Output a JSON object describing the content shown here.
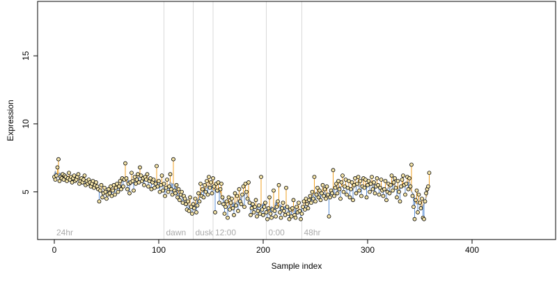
{
  "chart_data": {
    "type": "scatter",
    "xlabel": "Sample index",
    "ylabel": "Expression",
    "xlim": [
      -16,
      480
    ],
    "ylim": [
      1.5,
      19
    ],
    "x_ticks": [
      0,
      100,
      200,
      300,
      400
    ],
    "y_ticks": [
      5,
      10,
      15
    ],
    "grid": false,
    "legend": "none",
    "colors": {
      "above_fit_stem": "#f0a020",
      "below_fit_stem": "#5b8fd6",
      "fit_line": "#b0b0b0",
      "divider": "#d9d9d9",
      "region_label": "#aaaaaa",
      "point_fill": "#f4e4a8",
      "point_stroke": "#000000"
    },
    "regions": [
      {
        "label": "24hr",
        "start": 0
      },
      {
        "label": "dawn",
        "start": 105
      },
      {
        "label": "dusk",
        "start": 133
      },
      {
        "label": "12:00",
        "start": 152
      },
      {
        "label": "0:00",
        "start": 203
      },
      {
        "label": "48hr",
        "start": 237
      }
    ],
    "series": [
      {
        "values": [
          6.1,
          5.9,
          6.2,
          6.8,
          7.4,
          5.8,
          6.1,
          6.0,
          6.3,
          5.9,
          6.2,
          6.1,
          5.8,
          6.0,
          6.4,
          5.9,
          6.1,
          5.7,
          6.0,
          6.2,
          5.8,
          5.9,
          6.1,
          6.3,
          5.6,
          5.8,
          6.0,
          5.7,
          5.9,
          6.2,
          5.5,
          5.8,
          5.6,
          5.9,
          5.7,
          5.4,
          5.6,
          5.8,
          5.3,
          5.5,
          5.7,
          5.4,
          5.2,
          4.3,
          5.1,
          5.5,
          4.6,
          4.9,
          5.3,
          5.0,
          4.5,
          4.8,
          5.2,
          4.9,
          5.4,
          4.7,
          5.1,
          5.5,
          4.8,
          5.3,
          5.6,
          5.0,
          5.4,
          5.8,
          5.2,
          6.0,
          5.4,
          5.9,
          7.1,
          6.0,
          5.2,
          5.6,
          4.9,
          5.7,
          6.4,
          5.8,
          5.1,
          6.1,
          5.6,
          5.9,
          6.3,
          5.7,
          6.8,
          6.2,
          5.8,
          6.0,
          5.5,
          6.1,
          5.9,
          6.3,
          5.4,
          5.8,
          6.0,
          5.2,
          5.7,
          5.9,
          5.3,
          5.6,
          6.9,
          5.4,
          5.8,
          5.0,
          5.5,
          6.2,
          5.1,
          5.6,
          4.7,
          5.3,
          5.9,
          5.0,
          5.4,
          6.3,
          5.2,
          4.8,
          7.4,
          5.1,
          4.9,
          5.5,
          4.6,
          5.2,
          4.4,
          4.8,
          5.0,
          4.2,
          4.7,
          4.5,
          4.1,
          3.7,
          4.3,
          3.6,
          4.6,
          3.9,
          3.4,
          4.1,
          3.8,
          4.5,
          3.5,
          4.0,
          4.9,
          4.3,
          5.6,
          4.7,
          5.2,
          4.6,
          5.5,
          5.0,
          5.8,
          4.8,
          6.1,
          5.3,
          5.7,
          4.9,
          6.0,
          5.4,
          3.5,
          5.6,
          5.1,
          5.7,
          4.2,
          5.2,
          5.6,
          4.6,
          4.1,
          3.4,
          3.9,
          4.3,
          3.1,
          4.6,
          3.7,
          4.2,
          4.5,
          3.8,
          3.3,
          4.9,
          4.0,
          4.7,
          3.6,
          5.2,
          4.3,
          4.1,
          4.8,
          5.4,
          3.9,
          5.6,
          5.0,
          4.5,
          5.7,
          4.2,
          3.3,
          3.8,
          4.1,
          3.5,
          3.9,
          4.4,
          3.2,
          3.6,
          4.0,
          3.4,
          6.1,
          3.7,
          3.3,
          3.9,
          4.2,
          3.5,
          3.0,
          3.8,
          4.6,
          3.4,
          3.1,
          3.7,
          5.1,
          3.6,
          3.2,
          3.9,
          4.3,
          5.5,
          3.5,
          3.1,
          3.8,
          4.2,
          3.6,
          3.3,
          5.3,
          3.9,
          3.4,
          3.0,
          3.7,
          3.2,
          3.8,
          4.4,
          3.3,
          3.1,
          3.9,
          3.5,
          4.2,
          3.6,
          3.0,
          3.4,
          3.9,
          4.3,
          3.7,
          4.5,
          4.1,
          3.8,
          4.4,
          4.7,
          4.2,
          5.0,
          4.5,
          6.1,
          4.3,
          4.8,
          5.3,
          4.6,
          5.1,
          4.4,
          4.9,
          5.5,
          4.7,
          5.2,
          4.5,
          5.4,
          4.8,
          3.2,
          4.6,
          5.1,
          4.9,
          6.6,
          4.7,
          5.3,
          5.6,
          4.9,
          5.8,
          5.2,
          4.5,
          5.7,
          6.2,
          5.0,
          5.4,
          5.9,
          4.8,
          5.3,
          5.8,
          4.6,
          5.2,
          5.7,
          4.4,
          5.5,
          6.0,
          4.9,
          5.6,
          6.1,
          5.1,
          5.8,
          4.7,
          5.4,
          6.0,
          5.3,
          5.9,
          4.6,
          5.5,
          5.8,
          5.0,
          5.6,
          6.1,
          5.2,
          5.7,
          4.9,
          5.4,
          6.0,
          5.5,
          4.8,
          5.3,
          5.9,
          5.1,
          4.7,
          5.2,
          5.8,
          4.4,
          5.0,
          5.6,
          4.9,
          5.5,
          6.2,
          5.1,
          5.7,
          6.0,
          5.3,
          4.6,
          5.8,
          5.0,
          4.3,
          5.4,
          5.9,
          6.2,
          5.5,
          4.8,
          5.6,
          6.1,
          5.2,
          6.0,
          5.4,
          7.0,
          4.7,
          3.9,
          3.0,
          4.4,
          5.1,
          3.5,
          4.8,
          4.2,
          3.8,
          4.5,
          3.1,
          3.0,
          4.3,
          4.9,
          5.2,
          5.4,
          6.4
        ]
      }
    ]
  }
}
